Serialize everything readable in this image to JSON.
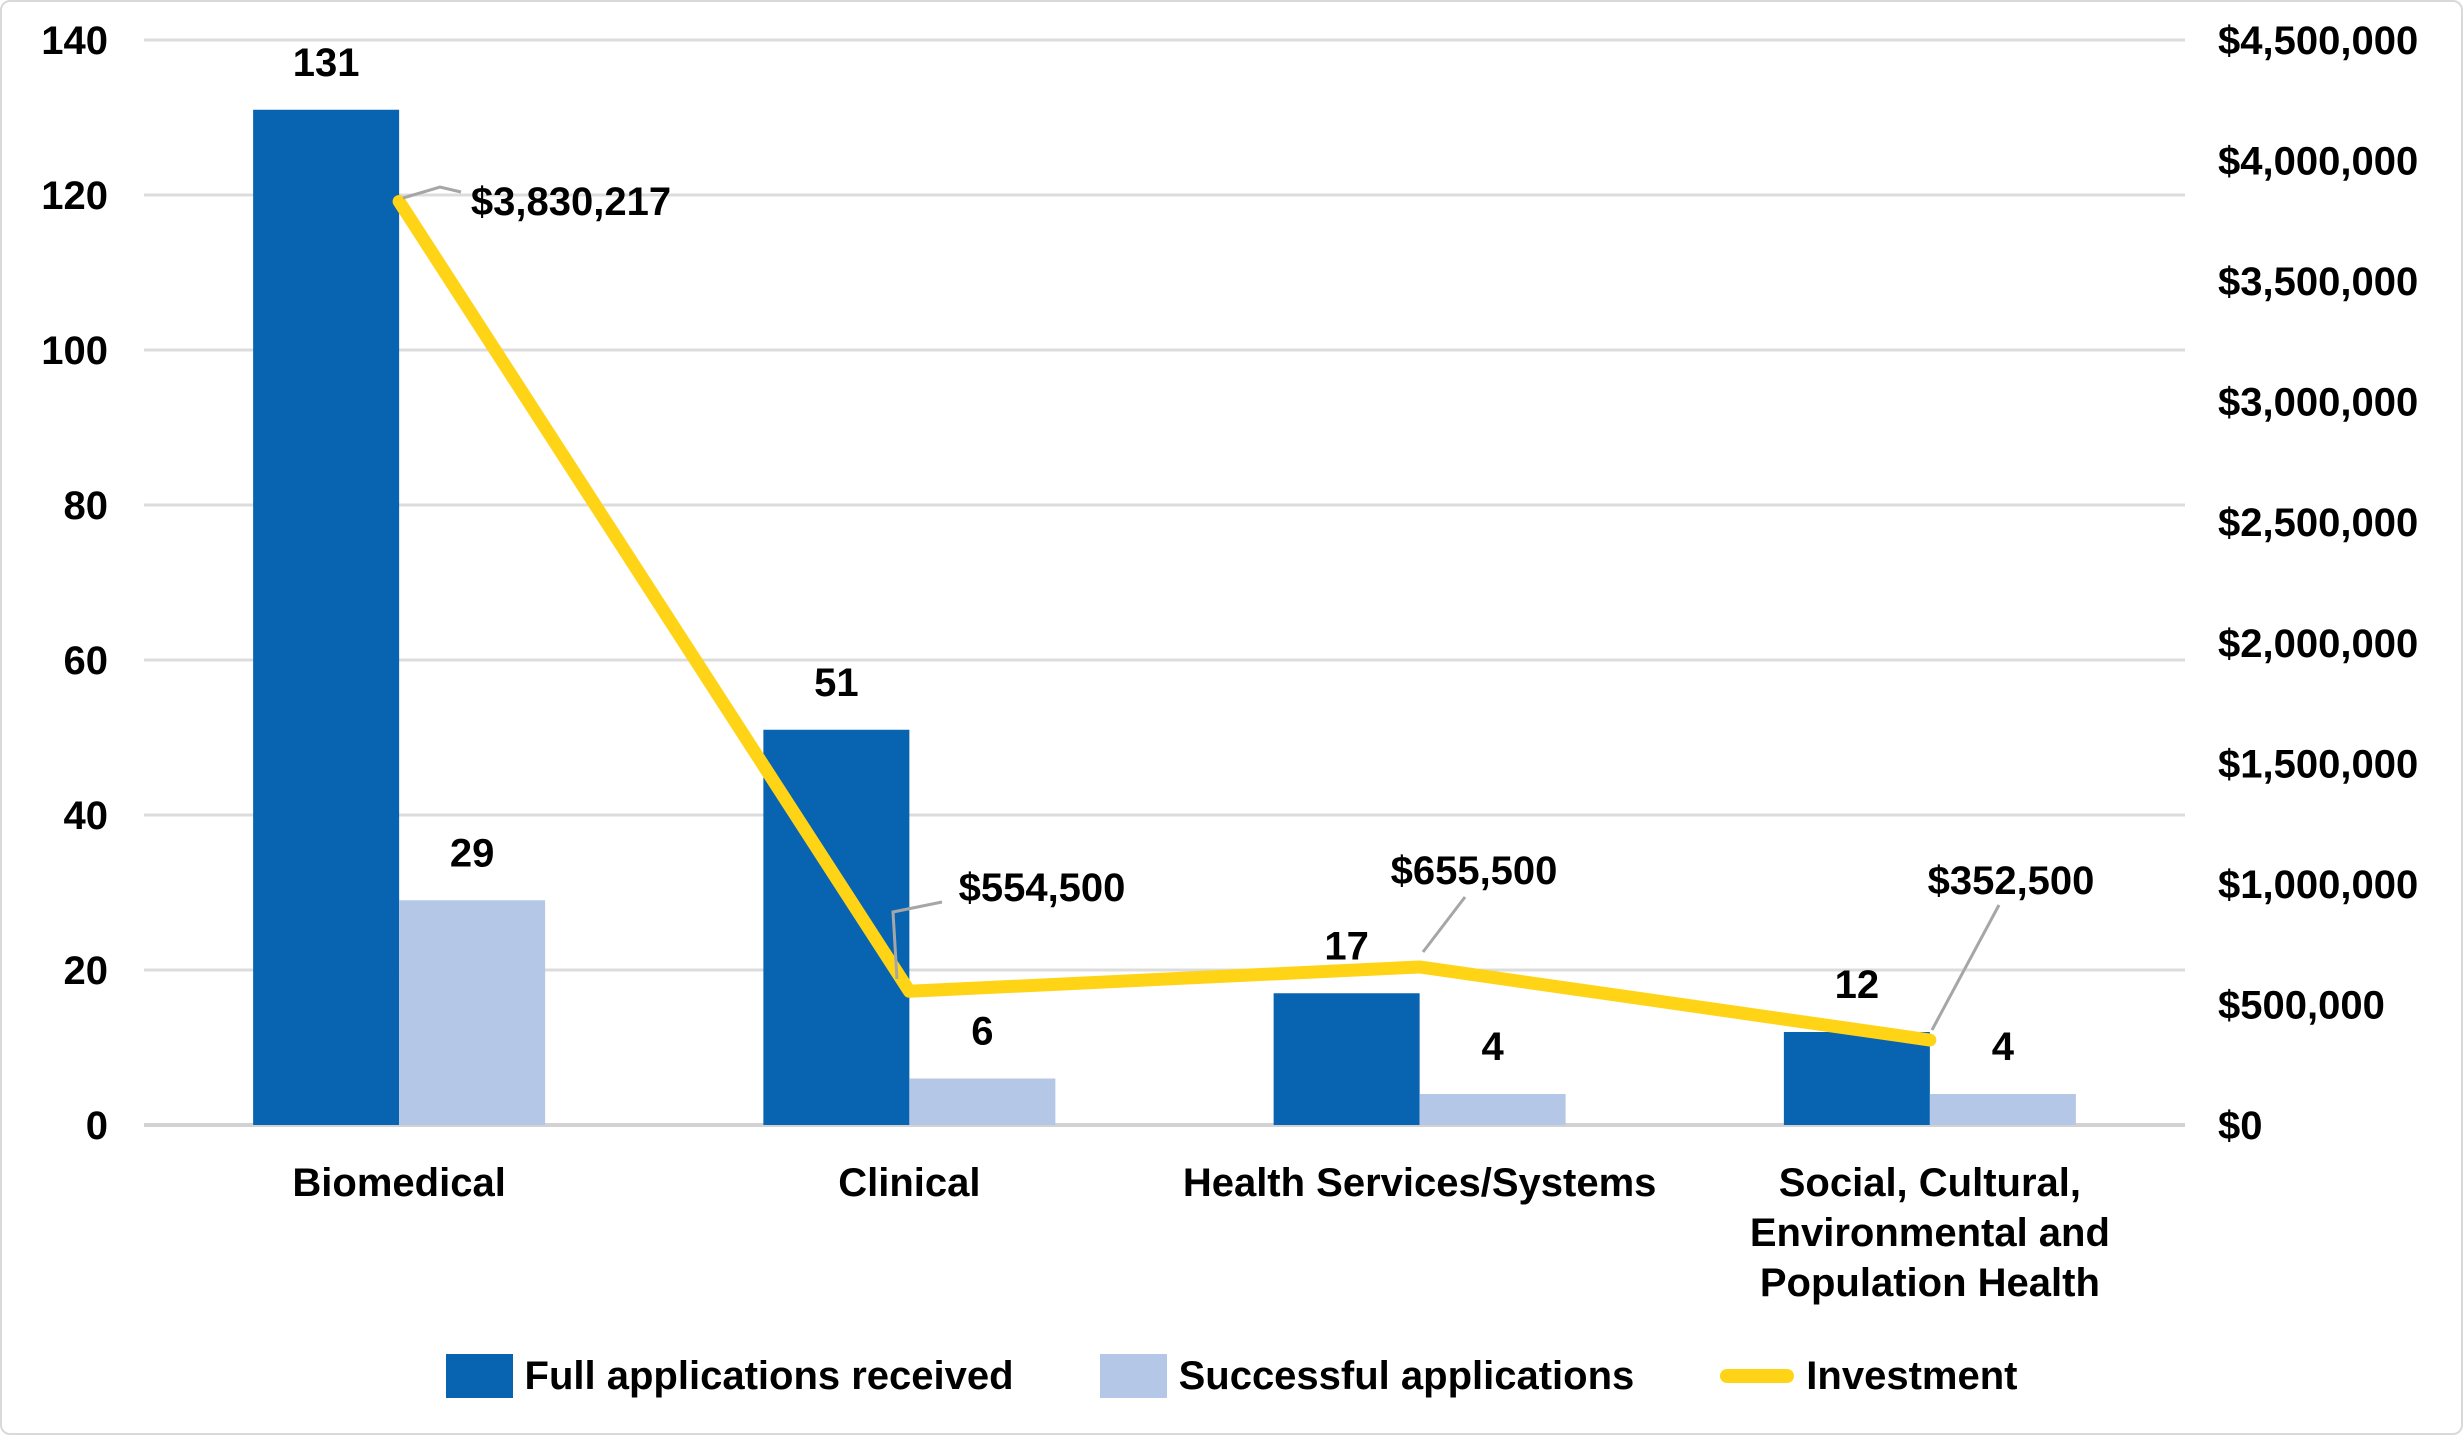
{
  "chart_data": {
    "type": "bar",
    "subtype": "grouped-bars-with-line-overlay",
    "categories": [
      "Biomedical",
      "Clinical",
      "Health Services/Systems",
      "Social, Cultural,\nEnvironmental and\nPopulation Health"
    ],
    "series": [
      {
        "name": "Full applications received",
        "type": "bar",
        "axis": "left",
        "color": "#0864B0",
        "values": [
          131,
          51,
          17,
          12
        ],
        "value_labels": [
          "131",
          "51",
          "17",
          "12"
        ]
      },
      {
        "name": "Successful applications",
        "type": "bar",
        "axis": "left",
        "color": "#B4C7E7",
        "values": [
          29,
          6,
          4,
          4
        ],
        "value_labels": [
          "29",
          "6",
          "4",
          "4"
        ]
      },
      {
        "name": "Investment",
        "type": "line",
        "axis": "right",
        "color": "#FFD416",
        "values": [
          3830217,
          554500,
          655500,
          352500
        ],
        "value_labels": [
          "$3,830,217",
          "$554,500",
          "$655,500",
          "$352,500"
        ]
      }
    ],
    "left_axis": {
      "min": 0,
      "max": 140,
      "tick_labels": [
        "0",
        "20",
        "40",
        "60",
        "80",
        "100",
        "120",
        "140"
      ]
    },
    "right_axis": {
      "min": 0,
      "max": 4500000,
      "tick_labels": [
        "$0",
        "$500,000",
        "$1,000,000",
        "$1,500,000",
        "$2,000,000",
        "$2,500,000",
        "$3,000,000",
        "$3,500,000",
        "$4,000,000",
        "$4,500,000"
      ]
    },
    "legend": {
      "position": "bottom",
      "entries": [
        "Full applications received",
        "Successful applications",
        "Investment"
      ]
    },
    "grid": "horizontal",
    "title": "",
    "xlabel": "",
    "ylabel": "",
    "colors": {
      "gridline": "#DCDCDC",
      "axis_line": "#D2D2D2",
      "leader_line": "#A6A6A6",
      "text": "#000000",
      "background": "#FFFFFF"
    }
  }
}
